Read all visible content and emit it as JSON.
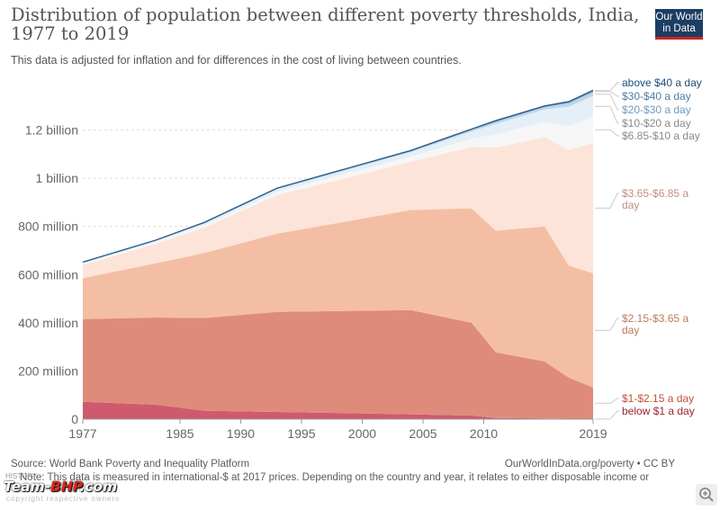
{
  "header": {
    "title": "Distribution of population between different poverty thresholds, India, 1977 to 2019",
    "subtitle": "This data is adjusted for inflation and for differences in the cost of living between countries.",
    "logo_line1": "Our World",
    "logo_line2": "in Data"
  },
  "footer": {
    "source": "Source: World Bank Poverty and Inequality Platform",
    "credit": "OurWorldInData.org/poverty • CC BY",
    "note": "Note: This data is measured in international-$ at 2017 prices. Depending on the country and year, it relates to either disposable income or"
  },
  "watermark": {
    "brand_a": "Team-",
    "brand_b": "BHP",
    "brand_c": ".com",
    "small_top": "HISTORY",
    "tagline": "copyright respective owners"
  },
  "chart_data": {
    "type": "area",
    "stacked": true,
    "title": "Distribution of population between different poverty thresholds, India, 1977 to 2019",
    "ylim": [
      0,
      1400
    ],
    "y_unit": "million",
    "xlim": [
      1977,
      2019
    ],
    "y_ticks": [
      {
        "v": 0,
        "label": "0"
      },
      {
        "v": 200,
        "label": "200 million"
      },
      {
        "v": 400,
        "label": "400 million"
      },
      {
        "v": 600,
        "label": "600 million"
      },
      {
        "v": 800,
        "label": "800 million"
      },
      {
        "v": 1000,
        "label": "1 billion"
      },
      {
        "v": 1200,
        "label": "1.2 billion"
      }
    ],
    "x_ticks": [
      {
        "v": 1977,
        "label": "1977"
      },
      {
        "v": 1985,
        "label": "1985"
      },
      {
        "v": 1990,
        "label": "1990"
      },
      {
        "v": 1995,
        "label": "1995"
      },
      {
        "v": 2000,
        "label": "2000"
      },
      {
        "v": 2005,
        "label": "2005"
      },
      {
        "v": 2010,
        "label": "2010"
      },
      {
        "v": 2019,
        "label": "2019"
      }
    ],
    "x": [
      1977,
      1983,
      1987,
      1993,
      2004,
      2009,
      2011,
      2015,
      2017,
      2019
    ],
    "series": [
      {
        "name": "below $1 a day",
        "color": "#cf5a6e",
        "values": [
          72,
          60,
          35,
          30,
          20,
          15,
          5,
          3,
          2,
          1
        ]
      },
      {
        "name": "$1-$2.15 a day",
        "color": "#df8b7c",
        "values": [
          343,
          362,
          385,
          415,
          433,
          385,
          272,
          237,
          170,
          130
        ]
      },
      {
        "name": "$2.15-$3.65 a day",
        "color": "#f4bea4",
        "values": [
          170,
          225,
          270,
          325,
          415,
          475,
          505,
          560,
          465,
          475
        ]
      },
      {
        "name": "$3.65-$6.85 a day",
        "color": "#fce4d8",
        "values": [
          55,
          80,
          105,
          160,
          200,
          255,
          345,
          370,
          480,
          540
        ]
      },
      {
        "name": "$6.85-$10 a day",
        "color": "#f6f6f6",
        "values": [
          6,
          8,
          10,
          14,
          22,
          34,
          55,
          65,
          100,
          110
        ]
      },
      {
        "name": "$10-$20 a day",
        "color": "#e4eff7",
        "values": [
          4,
          6,
          8,
          10,
          18,
          30,
          44,
          50,
          80,
          85
        ]
      },
      {
        "name": "$20-$30 a day",
        "color": "#bfd6e8",
        "values": [
          1,
          1,
          2,
          3,
          4,
          6,
          8,
          10,
          14,
          16
        ]
      },
      {
        "name": "$30-$40 a day",
        "color": "#85aac7",
        "values": [
          0.5,
          0.5,
          0.8,
          1,
          1.5,
          2,
          3,
          3,
          4,
          5
        ]
      },
      {
        "name": "above $40 a day",
        "color": "#2a5d8c",
        "values": [
          0.5,
          0.5,
          0.7,
          1,
          1.5,
          2,
          2,
          2,
          3,
          3
        ]
      }
    ],
    "legend": [
      {
        "label": "above $40 a day",
        "color": "#1d4e7a"
      },
      {
        "label": "$30-$40 a day",
        "color": "#4d7ea6"
      },
      {
        "label": "$20-$30 a day",
        "color": "#6e9cc0"
      },
      {
        "label": "$10-$20 a day",
        "color": "#8a8a8a"
      },
      {
        "label": "$6.85-$10 a day",
        "color": "#8a8a8a"
      },
      {
        "label": "$3.65-$6.85 a day",
        "color": "#c0907a"
      },
      {
        "label": "$2.15-$3.65 a day",
        "color": "#c0785a"
      },
      {
        "label": "$1-$2.15 a day",
        "color": "#c0503a"
      },
      {
        "label": "below $1 a day",
        "color": "#9c2334"
      }
    ]
  }
}
